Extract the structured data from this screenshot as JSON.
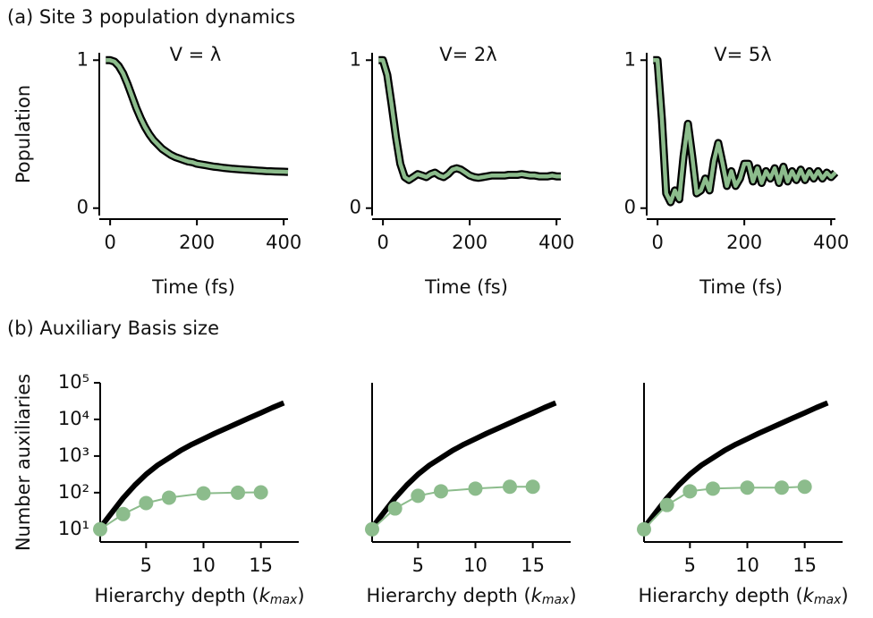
{
  "figure": {
    "labels": [
      "(a) Site 3 population dynamics",
      "(b) Auxiliary Basis size"
    ]
  },
  "chart_data": [
    {
      "type": "line",
      "title": "V = λ",
      "xlabel": "Time (fs)",
      "ylabel": "Population",
      "x": [
        -10,
        0,
        10,
        20,
        30,
        40,
        50,
        60,
        70,
        80,
        90,
        100,
        110,
        120,
        130,
        140,
        150,
        160,
        170,
        180,
        190,
        200,
        210,
        220,
        230,
        240,
        250,
        260,
        270,
        280,
        290,
        300,
        310,
        320,
        330,
        340,
        350,
        360,
        370,
        380,
        390,
        400,
        410
      ],
      "series": [
        {
          "color": "#8cbc8c",
          "outline": "#000000",
          "values": [
            1.0,
            1.0,
            0.99,
            0.96,
            0.91,
            0.84,
            0.76,
            0.68,
            0.61,
            0.55,
            0.5,
            0.46,
            0.43,
            0.4,
            0.38,
            0.36,
            0.345,
            0.335,
            0.325,
            0.315,
            0.31,
            0.3,
            0.295,
            0.29,
            0.285,
            0.28,
            0.277,
            0.273,
            0.27,
            0.267,
            0.264,
            0.262,
            0.26,
            0.258,
            0.256,
            0.254,
            0.252,
            0.25,
            0.249,
            0.248,
            0.247,
            0.246,
            0.245
          ]
        }
      ],
      "xlim": [
        -25,
        410
      ],
      "xticks": [
        0,
        200,
        400
      ],
      "ylim": [
        -0.05,
        1.05
      ],
      "yticks": [
        0,
        1
      ]
    },
    {
      "type": "line",
      "title": "V= 2λ",
      "xlabel": "Time (fs)",
      "x": [
        -10,
        0,
        10,
        20,
        30,
        40,
        50,
        60,
        70,
        80,
        90,
        100,
        110,
        120,
        130,
        140,
        150,
        160,
        170,
        180,
        190,
        200,
        210,
        220,
        230,
        240,
        250,
        260,
        270,
        280,
        290,
        300,
        310,
        320,
        330,
        340,
        350,
        360,
        370,
        380,
        390,
        400,
        410
      ],
      "series": [
        {
          "color": "#8cbc8c",
          "outline": "#000000",
          "values": [
            1.0,
            1.0,
            0.9,
            0.7,
            0.48,
            0.3,
            0.21,
            0.19,
            0.21,
            0.23,
            0.22,
            0.21,
            0.23,
            0.24,
            0.22,
            0.21,
            0.23,
            0.26,
            0.27,
            0.26,
            0.24,
            0.22,
            0.21,
            0.205,
            0.21,
            0.215,
            0.22,
            0.22,
            0.22,
            0.22,
            0.225,
            0.225,
            0.225,
            0.23,
            0.225,
            0.22,
            0.22,
            0.215,
            0.215,
            0.215,
            0.22,
            0.215,
            0.215
          ]
        }
      ],
      "xlim": [
        -25,
        410
      ],
      "xticks": [
        0,
        200,
        400
      ],
      "ylim": [
        -0.05,
        1.05
      ],
      "yticks": [
        0,
        1
      ]
    },
    {
      "type": "line",
      "title": "V= 5λ",
      "xlabel": "Time (fs)",
      "x": [
        -10,
        0,
        10,
        20,
        30,
        40,
        50,
        60,
        70,
        80,
        90,
        100,
        110,
        120,
        130,
        140,
        150,
        160,
        170,
        180,
        190,
        200,
        210,
        220,
        230,
        240,
        250,
        260,
        270,
        280,
        290,
        300,
        310,
        320,
        330,
        340,
        350,
        360,
        370,
        380,
        390,
        400,
        410
      ],
      "series": [
        {
          "color": "#8cbc8c",
          "outline": "#000000",
          "values": [
            1.0,
            1.0,
            0.6,
            0.1,
            0.04,
            0.12,
            0.06,
            0.35,
            0.57,
            0.35,
            0.1,
            0.12,
            0.2,
            0.12,
            0.32,
            0.44,
            0.3,
            0.15,
            0.25,
            0.15,
            0.2,
            0.3,
            0.3,
            0.18,
            0.27,
            0.17,
            0.25,
            0.2,
            0.27,
            0.17,
            0.28,
            0.18,
            0.25,
            0.19,
            0.26,
            0.19,
            0.25,
            0.2,
            0.25,
            0.2,
            0.24,
            0.21,
            0.24
          ]
        }
      ],
      "xlim": [
        -25,
        410
      ],
      "xticks": [
        0,
        200,
        400
      ],
      "ylim": [
        -0.05,
        1.05
      ],
      "yticks": [
        0,
        1
      ]
    },
    {
      "type": "line",
      "yscale": "log",
      "xlabel": [
        "Hierarchy depth (",
        "k",
        "max",
        ")"
      ],
      "ylabel": "Number auxiliaries",
      "series": [
        {
          "color": "#000000",
          "x": [
            1,
            2,
            3,
            4,
            5,
            6,
            7,
            8,
            9,
            10,
            11,
            12,
            13,
            14,
            15,
            16,
            17
          ],
          "values": [
            11,
            28,
            71,
            158,
            316,
            562,
            891,
            1413,
            2089,
            2951,
            4169,
            5754,
            7943,
            10965,
            15136,
            20893,
            28184
          ]
        },
        {
          "color": "#8cbc8c",
          "marker": "o",
          "x": [
            1,
            3,
            5,
            7,
            10,
            13,
            15
          ],
          "values": [
            10,
            26,
            52,
            73,
            96,
            100,
            102
          ]
        }
      ],
      "xlim": [
        1,
        18.3
      ],
      "xticks": [
        5,
        10,
        15
      ],
      "ylim": [
        4.5,
        100000
      ],
      "yticks": [
        {
          "value": 10,
          "label": "10¹"
        },
        {
          "value": 100,
          "label": "10²"
        },
        {
          "value": 1000,
          "label": "10³"
        },
        {
          "value": 10000,
          "label": "10⁴"
        },
        {
          "value": 100000,
          "label": "10⁵"
        }
      ]
    },
    {
      "type": "line",
      "yscale": "log",
      "xlabel": [
        "Hierarchy depth (",
        "k",
        "max",
        ")"
      ],
      "series": [
        {
          "color": "#000000",
          "x": [
            1,
            2,
            3,
            4,
            5,
            6,
            7,
            8,
            9,
            10,
            11,
            12,
            13,
            14,
            15,
            16,
            17
          ],
          "values": [
            11,
            28,
            71,
            158,
            316,
            562,
            891,
            1413,
            2089,
            2951,
            4169,
            5754,
            7943,
            10965,
            15136,
            20893,
            28184
          ]
        },
        {
          "color": "#8cbc8c",
          "marker": "o",
          "x": [
            1,
            3,
            5,
            7,
            10,
            13,
            15
          ],
          "values": [
            10,
            37,
            82,
            109,
            129,
            145,
            145
          ]
        }
      ],
      "xlim": [
        1,
        18.3
      ],
      "xticks": [
        5,
        10,
        15
      ],
      "ylim": [
        4.5,
        100000
      ]
    },
    {
      "type": "line",
      "yscale": "log",
      "xlabel": [
        "Hierarchy depth (",
        "k",
        "max",
        ")"
      ],
      "series": [
        {
          "color": "#000000",
          "x": [
            1,
            2,
            3,
            4,
            5,
            6,
            7,
            8,
            9,
            10,
            11,
            12,
            13,
            14,
            15,
            16,
            17
          ],
          "values": [
            11,
            28,
            71,
            158,
            316,
            562,
            891,
            1413,
            2089,
            2951,
            4169,
            5754,
            7943,
            10965,
            15136,
            20893,
            28184
          ]
        },
        {
          "color": "#8cbc8c",
          "marker": "o",
          "x": [
            1,
            3,
            5,
            7,
            10,
            13,
            15
          ],
          "values": [
            10,
            46,
            109,
            129,
            137,
            137,
            145
          ]
        }
      ],
      "xlim": [
        1,
        18.3
      ],
      "xticks": [
        5,
        10,
        15
      ],
      "ylim": [
        4.5,
        100000
      ]
    }
  ]
}
